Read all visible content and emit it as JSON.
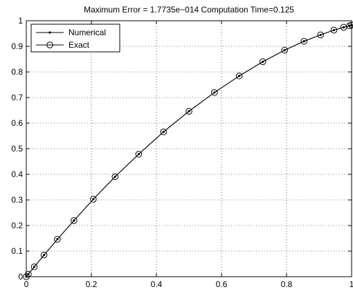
{
  "chart_data": {
    "type": "line",
    "title": "Maximum Error = 1.7735e−014    Computation Time=0.125",
    "xlabel": "",
    "ylabel": "",
    "xlim": [
      0,
      1
    ],
    "ylim": [
      0,
      1
    ],
    "grid": true,
    "grid_style": "dotted",
    "legend_position": "top-left",
    "x_ticks": [
      "0",
      "0.2",
      "0.4",
      "0.6",
      "0.8",
      "1"
    ],
    "y_ticks": [
      "0",
      "0.1",
      "0.2",
      "0.3",
      "0.4",
      "0.5",
      "0.6",
      "0.7",
      "0.8",
      "0.9",
      "1"
    ],
    "series": [
      {
        "name": "Numerical",
        "style": "solid line with point markers",
        "color": "#000000",
        "x": [
          0,
          0.0062,
          0.0245,
          0.0545,
          0.0955,
          0.1464,
          0.2061,
          0.273,
          0.3455,
          0.4218,
          0.5,
          0.5782,
          0.6545,
          0.727,
          0.7939,
          0.8536,
          0.9045,
          0.9455,
          0.9755,
          0.9938,
          1
        ],
        "values": [
          0,
          0.0098,
          0.0385,
          0.0845,
          0.1462,
          0.2194,
          0.3029,
          0.3908,
          0.4786,
          0.5658,
          0.6464,
          0.7195,
          0.7844,
          0.8399,
          0.8849,
          0.9199,
          0.9448,
          0.9633,
          0.9744,
          0.9805,
          0.9833
        ]
      },
      {
        "name": "Exact",
        "style": "solid line with open circle markers",
        "color": "#000000",
        "x": [
          0,
          0.0062,
          0.0245,
          0.0545,
          0.0955,
          0.1464,
          0.2061,
          0.273,
          0.3455,
          0.4218,
          0.5,
          0.5782,
          0.6545,
          0.727,
          0.7939,
          0.8536,
          0.9045,
          0.9455,
          0.9755,
          0.9938,
          1
        ],
        "values": [
          0,
          0.0098,
          0.0385,
          0.0845,
          0.1462,
          0.2194,
          0.3029,
          0.3908,
          0.4786,
          0.5658,
          0.6464,
          0.7195,
          0.7844,
          0.8399,
          0.8849,
          0.9199,
          0.9448,
          0.9633,
          0.9744,
          0.9805,
          0.9833
        ]
      }
    ]
  }
}
